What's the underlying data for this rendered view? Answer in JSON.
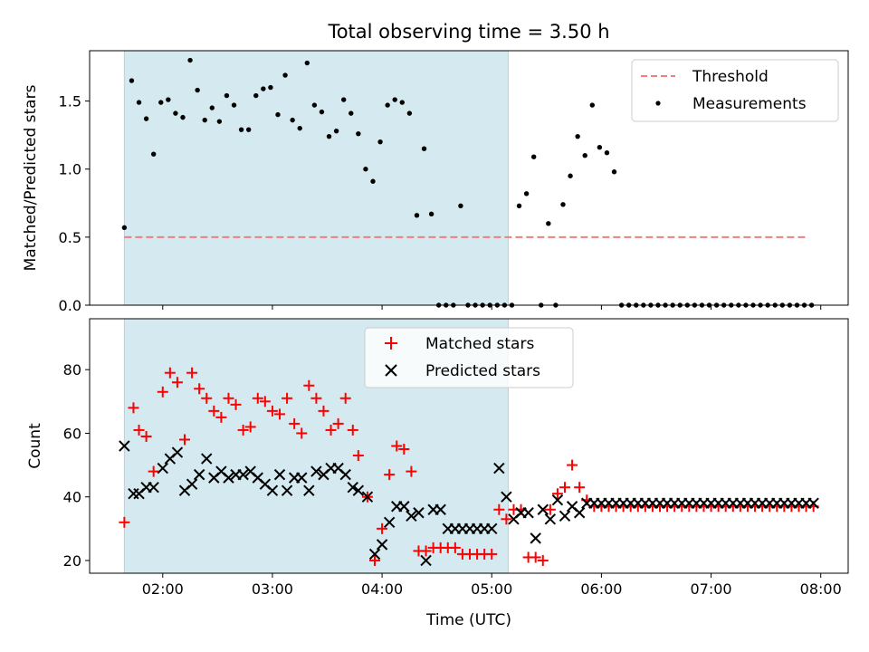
{
  "title": "Total observing time = 3.50 h",
  "colors": {
    "shade": "#d4eaf0",
    "threshold": "#f17f7f",
    "measurement": "#000000",
    "matched": "#ff0000",
    "predicted": "#000000"
  },
  "chart_data": [
    {
      "type": "scatter",
      "panel": "top",
      "ylabel": "Matched/Predicted stars",
      "xlim": [
        80,
        495
      ],
      "ylim": [
        0,
        1.87
      ],
      "yticks": [
        0.0,
        0.5,
        1.0,
        1.5
      ],
      "ytick_labels": [
        "0.0",
        "0.5",
        "1.0",
        "1.5"
      ],
      "xticks": [
        120,
        180,
        240,
        300,
        360,
        420,
        480
      ],
      "shaded_interval": [
        99,
        309
      ],
      "legend_position": "upper right",
      "threshold": {
        "name": "Threshold",
        "value": 0.5,
        "x": [
          99,
          473
        ]
      },
      "series": [
        {
          "name": "Measurements",
          "x": [
            99,
            103,
            107,
            111,
            115,
            119,
            123,
            127,
            131,
            135,
            139,
            143,
            147,
            151,
            155,
            159,
            163,
            167,
            171,
            175,
            179,
            183,
            187,
            191,
            195,
            199,
            203,
            207,
            211,
            215,
            219,
            223,
            227,
            231,
            235,
            239,
            243,
            247,
            251,
            255,
            259,
            263,
            267,
            271,
            275,
            279,
            283,
            287,
            291,
            295,
            299,
            303,
            307,
            311,
            315,
            319,
            323,
            327,
            331,
            335,
            339,
            343,
            347,
            351,
            355,
            359,
            363,
            367,
            371,
            375,
            379,
            383,
            387,
            391,
            395,
            399,
            403,
            407,
            411,
            415,
            419,
            423,
            427,
            431,
            435,
            439,
            443,
            447,
            451,
            455,
            459,
            463,
            467,
            471,
            475
          ],
          "y": [
            0.57,
            1.65,
            1.49,
            1.37,
            1.11,
            1.49,
            1.51,
            1.41,
            1.38,
            1.8,
            1.58,
            1.36,
            1.45,
            1.35,
            1.54,
            1.47,
            1.29,
            1.29,
            1.54,
            1.59,
            1.6,
            1.4,
            1.69,
            1.36,
            1.3,
            1.78,
            1.47,
            1.42,
            1.24,
            1.28,
            1.51,
            1.41,
            1.26,
            1.0,
            0.91,
            1.2,
            1.47,
            1.51,
            1.49,
            1.41,
            0.66,
            1.15,
            0.67,
            0.0,
            0.0,
            0.0,
            0.73,
            0.0,
            0.0,
            0.0,
            0.0,
            0.0,
            0.0,
            0.0,
            0.73,
            0.82,
            1.09,
            0.0,
            0.6,
            0.0,
            0.74,
            0.95,
            1.24,
            1.1,
            1.47,
            1.16,
            1.12,
            0.98,
            0.0,
            0.0,
            0.0,
            0.0,
            0.0,
            0.0,
            0.0,
            0.0,
            0.0,
            0.0,
            0.0,
            0.0,
            0.0,
            0.0,
            0.0,
            0.0,
            0.0,
            0.0,
            0.0,
            0.0,
            0.0,
            0.0,
            0.0,
            0.0,
            0.0,
            0.0,
            0.0
          ]
        }
      ]
    },
    {
      "type": "scatter",
      "panel": "bottom",
      "xlabel": "Time (UTC)",
      "ylabel": "Count",
      "xlim": [
        80,
        495
      ],
      "ylim": [
        16,
        96
      ],
      "yticks": [
        20,
        40,
        60,
        80
      ],
      "ytick_labels": [
        "20",
        "40",
        "60",
        "80"
      ],
      "xticks": [
        120,
        180,
        240,
        300,
        360,
        420,
        480
      ],
      "xtick_labels": [
        "02:00",
        "03:00",
        "04:00",
        "05:00",
        "06:00",
        "07:00",
        "08:00"
      ],
      "shaded_interval": [
        99,
        309
      ],
      "legend_position": "upper center",
      "series": [
        {
          "name": "Matched stars",
          "marker": "plus",
          "x": [
            99,
            104,
            107,
            111,
            115,
            120,
            124,
            128,
            132,
            136,
            140,
            144,
            148,
            152,
            156,
            160,
            164,
            168,
            172,
            176,
            180,
            184,
            188,
            192,
            196,
            200,
            204,
            208,
            212,
            216,
            220,
            224,
            227,
            232,
            236,
            240,
            244,
            248,
            252,
            256,
            260,
            264,
            268,
            272,
            276,
            280,
            284,
            288,
            292,
            296,
            300,
            304,
            308,
            312,
            316,
            320,
            324,
            328,
            332,
            336,
            340,
            344,
            348,
            352,
            356,
            360,
            364,
            368,
            372,
            376,
            380,
            384,
            388,
            392,
            396,
            400,
            404,
            408,
            412,
            416,
            420,
            424,
            428,
            432,
            436,
            440,
            444,
            448,
            452,
            456,
            460,
            464,
            468,
            472,
            476
          ],
          "y": [
            32,
            68,
            61,
            59,
            48,
            73,
            79,
            76,
            58,
            79,
            74,
            71,
            67,
            65,
            71,
            69,
            61,
            62,
            71,
            70,
            67,
            66,
            71,
            63,
            60,
            75,
            71,
            67,
            61,
            63,
            71,
            61,
            53,
            40,
            20,
            30,
            47,
            56,
            55,
            48,
            23,
            23,
            24,
            24,
            24,
            24,
            22,
            22,
            22,
            22,
            22,
            36,
            33,
            36,
            36,
            21,
            21,
            20,
            36,
            41,
            43,
            50,
            43,
            39,
            37,
            37,
            37,
            37,
            37,
            37,
            37,
            37,
            37,
            37,
            37,
            37,
            37,
            37,
            37,
            37,
            37,
            37,
            37,
            37,
            37,
            37,
            37,
            37,
            37,
            37,
            37,
            37,
            37,
            37,
            37
          ]
        },
        {
          "name": "Predicted stars",
          "marker": "x",
          "x": [
            99,
            104,
            107,
            111,
            115,
            120,
            124,
            128,
            132,
            136,
            140,
            144,
            148,
            152,
            156,
            160,
            164,
            168,
            172,
            176,
            180,
            184,
            188,
            192,
            196,
            200,
            204,
            208,
            212,
            216,
            220,
            224,
            227,
            232,
            236,
            240,
            244,
            248,
            252,
            256,
            260,
            264,
            268,
            272,
            276,
            280,
            284,
            288,
            292,
            296,
            300,
            304,
            308,
            312,
            316,
            320,
            324,
            328,
            332,
            336,
            340,
            344,
            348,
            352,
            356,
            360,
            364,
            368,
            372,
            376,
            380,
            384,
            388,
            392,
            396,
            400,
            404,
            408,
            412,
            416,
            420,
            424,
            428,
            432,
            436,
            440,
            444,
            448,
            452,
            456,
            460,
            464,
            468,
            472,
            476
          ],
          "y": [
            56,
            41,
            41,
            43,
            43,
            49,
            52,
            54,
            42,
            44,
            47,
            52,
            46,
            48,
            46,
            47,
            47,
            48,
            46,
            44,
            42,
            47,
            42,
            46,
            46,
            42,
            48,
            47,
            49,
            49,
            47,
            43,
            42,
            40,
            22,
            25,
            32,
            37,
            37,
            34,
            35,
            20,
            36,
            36,
            30,
            30,
            30,
            30,
            30,
            30,
            30,
            49,
            40,
            33,
            35,
            35,
            27,
            36,
            33,
            39,
            34,
            37,
            35,
            38,
            38,
            38,
            38,
            38,
            38,
            38,
            38,
            38,
            38,
            38,
            38,
            38,
            38,
            38,
            38,
            38,
            38,
            38,
            38,
            38,
            38,
            38,
            38,
            38,
            38,
            38,
            38,
            38,
            38,
            38,
            38
          ]
        }
      ]
    }
  ]
}
